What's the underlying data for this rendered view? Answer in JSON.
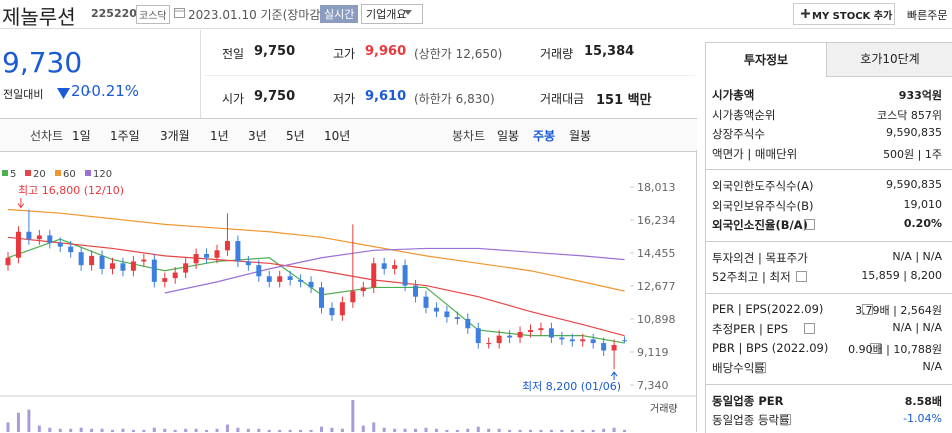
{
  "header": {
    "name": "제놀루션",
    "code": "225220",
    "market": "코스닥",
    "date": "2023.01.10 기준(장마감)",
    "realtime": "실시간",
    "overview": "기업개요",
    "mystock": "MY STOCK 추가",
    "quick_order": "빠른주문"
  },
  "price": {
    "current": "9,730",
    "change_label": "전일대비",
    "change": "20",
    "change_pct": "-0.21%"
  },
  "quotes": [
    {
      "label": "전일",
      "value": "9,750"
    },
    {
      "label": "고가",
      "value": "9,960",
      "note": "(상한가 12,650)"
    },
    {
      "label": "거래량",
      "value": "15,384"
    },
    {
      "label": "시가",
      "value": "9,750"
    },
    {
      "label": "저가",
      "value": "9,610",
      "note": "(하한가 6,830)"
    },
    {
      "label": "거래대금",
      "value": "151 백만"
    }
  ],
  "chart_tabs": {
    "line_label": "선차트",
    "line_periods": [
      "1일",
      "1주일",
      "3개월",
      "1년",
      "3년",
      "5년",
      "10년"
    ],
    "candle_label": "봉차트",
    "candle_periods": [
      "일봉",
      "주봉",
      "월봉"
    ]
  },
  "chart_data": {
    "type": "candlestick",
    "up_color": "#e8383d",
    "down_color": "#3d7fe0",
    "open": [
      13800,
      14200,
      15600,
      15200,
      15400,
      15000,
      14800,
      14500,
      13800,
      14300,
      13600,
      13900,
      13500,
      14000,
      14100,
      12900,
      13100,
      13400,
      13900,
      14400,
      14200,
      14600,
      15100,
      14000,
      13800,
      13200,
      12900,
      13200,
      13000,
      12900,
      12600,
      11500,
      11100,
      11800,
      12400,
      12600,
      13900,
      13600,
      13800,
      12700,
      12100,
      11500,
      11300,
      11000,
      10900,
      10400,
      9600,
      9600,
      10000,
      9900,
      10200,
      10300,
      10400,
      9900,
      9800,
      9700,
      9800,
      9600,
      9200,
      9750
    ],
    "high": [
      14500,
      15900,
      16800,
      15700,
      15700,
      15300,
      15100,
      14800,
      14600,
      14600,
      14200,
      14200,
      14300,
      14400,
      14400,
      13400,
      13700,
      14200,
      14700,
      14700,
      14900,
      16600,
      15400,
      14300,
      14100,
      13500,
      13500,
      13500,
      13300,
      13200,
      12900,
      11800,
      12100,
      16000,
      12900,
      14200,
      14200,
      14100,
      14100,
      13000,
      12400,
      11800,
      11600,
      11300,
      11200,
      10700,
      9900,
      10300,
      10300,
      10500,
      10600,
      10700,
      10700,
      10200,
      10100,
      10100,
      10100,
      9900,
      9800,
      9960
    ],
    "low": [
      13500,
      13900,
      14900,
      14900,
      14700,
      14500,
      14200,
      13500,
      13500,
      13300,
      13300,
      13200,
      13200,
      13700,
      12600,
      12600,
      12800,
      13100,
      13600,
      13900,
      13900,
      14300,
      13700,
      13500,
      12900,
      12600,
      12600,
      12700,
      12600,
      12300,
      11200,
      10800,
      10800,
      11500,
      12100,
      12300,
      13300,
      13300,
      12400,
      11800,
      11200,
      11000,
      10700,
      10600,
      10100,
      9300,
      9300,
      9300,
      9600,
      9600,
      9900,
      10000,
      9600,
      9500,
      9400,
      9400,
      9300,
      8900,
      8200,
      9610
    ],
    "close": [
      14200,
      15600,
      15200,
      15400,
      15000,
      14800,
      14500,
      13800,
      14300,
      13600,
      13900,
      13500,
      14000,
      14100,
      12900,
      13100,
      13400,
      13900,
      14400,
      14200,
      14600,
      15100,
      14000,
      13800,
      13200,
      12900,
      13200,
      13000,
      12900,
      12600,
      11500,
      11100,
      11800,
      12400,
      12600,
      13900,
      13600,
      13800,
      12700,
      12100,
      11500,
      11300,
      11000,
      10900,
      10400,
      9600,
      9600,
      10000,
      9900,
      10200,
      10300,
      10400,
      9900,
      9800,
      9700,
      9800,
      9600,
      9200,
      9500,
      9730
    ],
    "volume": [
      90000,
      180000,
      210000,
      60000,
      40000,
      30000,
      30000,
      40000,
      30000,
      30000,
      20000,
      30000,
      20000,
      20000,
      40000,
      30000,
      20000,
      30000,
      30000,
      20000,
      30000,
      70000,
      40000,
      30000,
      30000,
      20000,
      20000,
      20000,
      20000,
      20000,
      50000,
      40000,
      30000,
      300000,
      60000,
      90000,
      40000,
      30000,
      30000,
      30000,
      40000,
      30000,
      20000,
      20000,
      30000,
      50000,
      30000,
      30000,
      20000,
      20000,
      20000,
      20000,
      20000,
      20000,
      20000,
      20000,
      20000,
      30000,
      40000,
      20000
    ],
    "volume_color": "#a99bd8",
    "volume_label": "거래량",
    "ma_x": [
      0,
      5,
      10,
      15,
      20,
      25,
      30,
      35,
      40,
      45,
      50,
      55,
      59
    ],
    "series": [
      {
        "name": "5",
        "color": "#4caf50",
        "values": [
          14200,
          15200,
          14100,
          13500,
          14000,
          14200,
          12200,
          12600,
          12600,
          10300,
          10000,
          10000,
          9600
        ]
      },
      {
        "name": "20",
        "color": "#e84545",
        "values": [
          15300,
          15000,
          14700,
          14300,
          14100,
          13900,
          13500,
          13000,
          12700,
          12100,
          11300,
          10600,
          10000
        ]
      },
      {
        "name": "60",
        "color": "#f0962e",
        "values": [
          16800,
          16600,
          16300,
          16000,
          15800,
          15600,
          15300,
          14800,
          14300,
          13900,
          13500,
          12900,
          12400
        ]
      },
      {
        "name": "120",
        "color": "#9c6fd6",
        "values": [
          null,
          null,
          null,
          12300,
          12900,
          13600,
          14200,
          14600,
          14700,
          14700,
          14500,
          14300,
          14100
        ]
      }
    ],
    "ylim": [
      7340,
      18013
    ],
    "yticks": [
      {
        "value": 18013,
        "label": "18,013"
      },
      {
        "value": 16234,
        "label": "16,234"
      },
      {
        "value": 14455,
        "label": "14,455"
      },
      {
        "value": 12677,
        "label": "12,677"
      },
      {
        "value": 10898,
        "label": "10,898"
      },
      {
        "value": 9119,
        "label": "9,119"
      },
      {
        "value": 7340,
        "label": "7,340"
      }
    ],
    "annotations": [
      {
        "text": "최고 16,800 (12/10)",
        "index": 2
      },
      {
        "text": "최저 8,200 (01/06)",
        "index": 58
      }
    ]
  },
  "info": {
    "tabs": [
      "투자정보",
      "호가10단계"
    ],
    "groups": [
      [
        {
          "label": "시가총액",
          "value": "933억원"
        },
        {
          "label": "시가총액순위",
          "value": "코스닥 857위"
        },
        {
          "label": "상장주식수",
          "value": "9,590,835"
        },
        {
          "label": "액면가 | 매매단위",
          "value": "500원 | 1주"
        }
      ],
      [
        {
          "label": "외국인한도주식수(A)",
          "value": "9,590,835"
        },
        {
          "label": "외국인보유주식수(B)",
          "value": "19,010"
        },
        {
          "label": "외국인소진율(B/A)",
          "value": "0.20%"
        }
      ],
      [
        {
          "label": "투자의견 | 목표주가",
          "value": "N/A | N/A"
        },
        {
          "label": "52주최고 | 최저",
          "value": "15,859 | 8,200"
        }
      ],
      [
        {
          "label": "PER | EPS(2022.09)",
          "value": "3.79배 | 2,564원"
        },
        {
          "label": "추정PER | EPS",
          "value": "N/A | N/A"
        },
        {
          "label": "PBR | BPS (2022.09)",
          "value": "0.90배 | 10,788원"
        },
        {
          "label": "배당수익률",
          "value": "N/A"
        }
      ],
      [
        {
          "label": "동일업종 PER",
          "value": "8.58배"
        },
        {
          "label": "동일업종 등락률",
          "value": "-1.04%"
        }
      ]
    ]
  }
}
